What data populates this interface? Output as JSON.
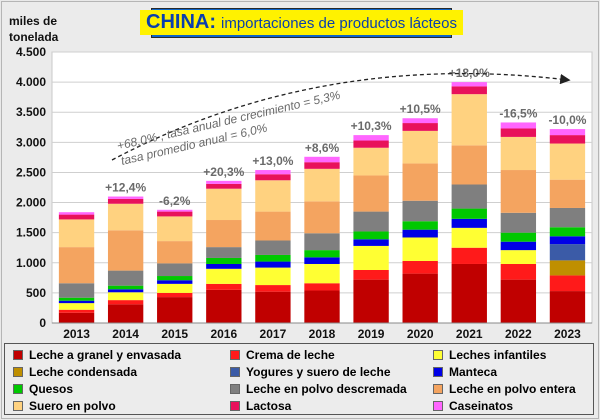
{
  "title": {
    "main": "CHINA:",
    "sub": "importaciones de productos lácteos"
  },
  "unit_label": "miles de tonelada",
  "chart_data": {
    "type": "bar",
    "stacked": true,
    "title": "CHINA: importaciones de productos lácteos",
    "ylabel": "miles de tonelada",
    "ylim": [
      0,
      4500
    ],
    "yticks": [
      0,
      500,
      1000,
      1500,
      2000,
      2500,
      3000,
      3500,
      4000,
      4500
    ],
    "ytick_labels": [
      "0",
      "500",
      "1.000",
      "1.500",
      "2.000",
      "2.500",
      "3.000",
      "3.500",
      "4.000",
      "4.500"
    ],
    "categories": [
      "2013",
      "2014",
      "2015",
      "2016",
      "2017",
      "2018",
      "2019",
      "2020",
      "2021",
      "2022",
      "2023"
    ],
    "growth_labels": [
      "",
      "+12,4%",
      "-6,2%",
      "+20,3%",
      "+13,0%",
      "+8,6%",
      "+10,3%",
      "+10,5%",
      "+18,0%",
      "-16,5%",
      "-10,0%"
    ],
    "annotation_lines": [
      "+68,0% , tasa anual de crecimiento = 5,3%",
      "tasa promedio anual = 6,0%"
    ],
    "grid": true,
    "legend_position": "bottom",
    "series": [
      {
        "name": "Leche a granel y envasada",
        "color": "#c00000",
        "values": [
          170,
          310,
          430,
          550,
          520,
          540,
          720,
          820,
          980,
          720,
          530
        ]
      },
      {
        "name": "Crema de leche",
        "color": "#ff1a1a",
        "values": [
          50,
          70,
          70,
          100,
          110,
          120,
          160,
          210,
          270,
          260,
          260
        ]
      },
      {
        "name": "Leches infantiles",
        "color": "#ffff33",
        "values": [
          110,
          130,
          150,
          250,
          290,
          320,
          400,
          390,
          330,
          230,
          0
        ]
      },
      {
        "name": "Leche condensada",
        "color": "#bf8f00",
        "values": [
          0,
          0,
          0,
          0,
          0,
          0,
          0,
          0,
          0,
          0,
          250
        ]
      },
      {
        "name": "Yogures y suero de leche",
        "color": "#3b5ba7",
        "values": [
          0,
          0,
          0,
          0,
          0,
          0,
          0,
          0,
          0,
          0,
          270
        ]
      },
      {
        "name": "Manteca",
        "color": "#0000e6",
        "values": [
          40,
          50,
          60,
          80,
          100,
          110,
          110,
          130,
          150,
          140,
          130
        ]
      },
      {
        "name": "Quesos",
        "color": "#00c800",
        "values": [
          50,
          60,
          70,
          100,
          110,
          120,
          130,
          140,
          170,
          150,
          150
        ]
      },
      {
        "name": "Leche en polvo descremada",
        "color": "#7f7f7f",
        "values": [
          240,
          250,
          210,
          180,
          240,
          280,
          330,
          340,
          400,
          330,
          320
        ]
      },
      {
        "name": "Leche en polvo entera",
        "color": "#f4a460",
        "values": [
          600,
          670,
          370,
          450,
          480,
          530,
          600,
          620,
          650,
          710,
          470
        ]
      },
      {
        "name": "Suero en polvo",
        "color": "#ffd280",
        "values": [
          460,
          440,
          410,
          520,
          520,
          540,
          460,
          540,
          850,
          550,
          600
        ]
      },
      {
        "name": "Lactosa",
        "color": "#e8115b",
        "values": [
          80,
          80,
          80,
          80,
          100,
          110,
          120,
          130,
          130,
          140,
          140
        ]
      },
      {
        "name": "Caseinatos",
        "color": "#ff66ff",
        "values": [
          40,
          40,
          30,
          50,
          70,
          90,
          90,
          80,
          70,
          100,
          100
        ]
      }
    ]
  }
}
